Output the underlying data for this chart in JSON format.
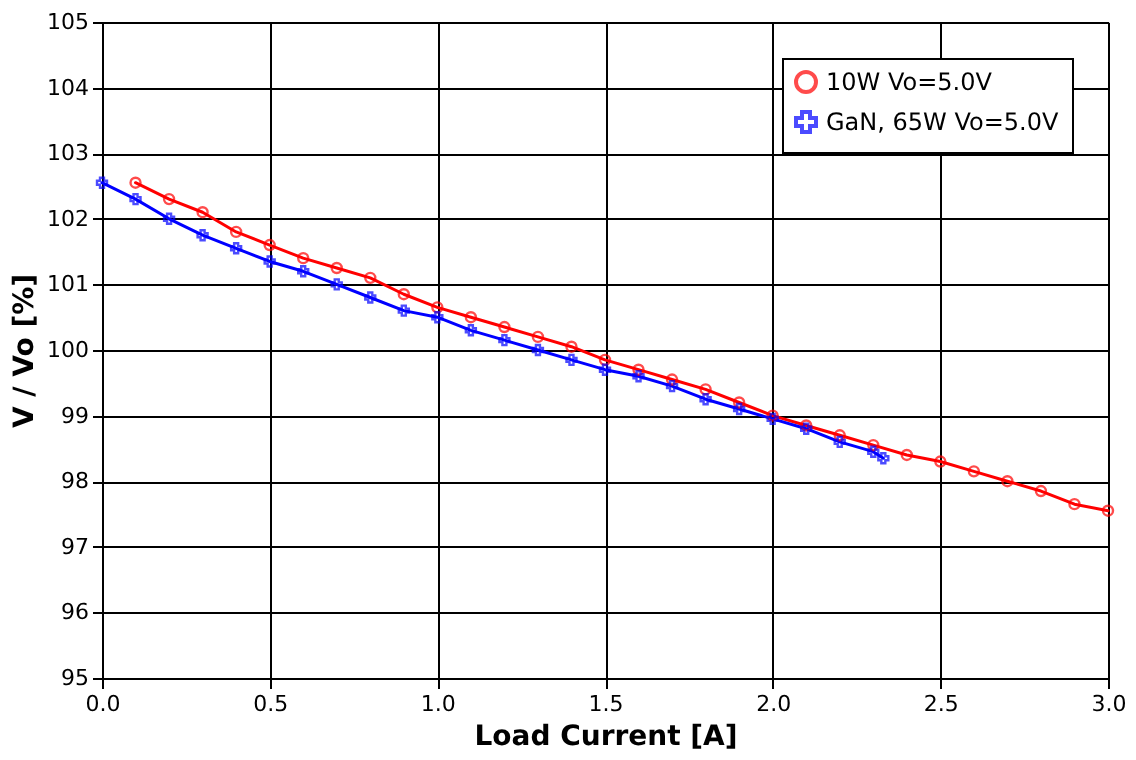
{
  "chart_data": {
    "type": "line",
    "xlabel": "Load Current [A]",
    "ylabel": "V / Vo [%]",
    "xlim": [
      0,
      3.0
    ],
    "xticks": [
      {
        "value": 0,
        "label": "0.0"
      },
      0.5,
      {
        "value": 1,
        "label": "1.0"
      },
      1.5,
      {
        "value": 2,
        "label": "2.0"
      },
      2.5,
      {
        "value": 3,
        "label": "3.0"
      }
    ],
    "ylim": [
      95,
      105
    ],
    "yticks": [
      95,
      96,
      97,
      98,
      99,
      100,
      101,
      102,
      103,
      104,
      105
    ],
    "grid": true,
    "legend": "top right",
    "line_style": "solid",
    "series": [
      {
        "name": "10W Vo=5.0V",
        "color": "#ff0000",
        "marker": "circle",
        "x": [
          0.1,
          0.2,
          0.3,
          0.4,
          0.5,
          0.6,
          0.7,
          0.8,
          0.9,
          1.0,
          1.1,
          1.2,
          1.3,
          1.4,
          1.5,
          1.6,
          1.7,
          1.8,
          1.9,
          2.0,
          2.1,
          2.2,
          2.3,
          2.4,
          2.5,
          2.6,
          2.7,
          2.8,
          2.9,
          3.0
        ],
        "values": [
          102.55,
          102.3,
          102.1,
          101.8,
          101.6,
          101.4,
          101.25,
          101.1,
          100.85,
          100.65,
          100.5,
          100.35,
          100.2,
          100.05,
          99.85,
          99.7,
          99.55,
          99.4,
          99.2,
          99.0,
          98.85,
          98.7,
          98.55,
          98.4,
          98.3,
          98.15,
          98.0,
          97.85,
          97.65,
          97.55
        ]
      },
      {
        "name": "GaN, 65W Vo=5.0V",
        "color": "#0000ff",
        "marker": "cross",
        "x": [
          0.0,
          0.1,
          0.2,
          0.3,
          0.4,
          0.5,
          0.6,
          0.7,
          0.8,
          0.9,
          1.0,
          1.1,
          1.2,
          1.3,
          1.4,
          1.5,
          1.6,
          1.7,
          1.8,
          1.9,
          2.0,
          2.1,
          2.2,
          2.3,
          2.33
        ],
        "values": [
          102.55,
          102.3,
          102.0,
          101.75,
          101.55,
          101.35,
          101.2,
          101.0,
          100.8,
          100.6,
          100.5,
          100.3,
          100.15,
          100.0,
          99.85,
          99.7,
          99.6,
          99.45,
          99.25,
          99.1,
          98.95,
          98.8,
          98.6,
          98.45,
          98.35
        ]
      }
    ]
  }
}
